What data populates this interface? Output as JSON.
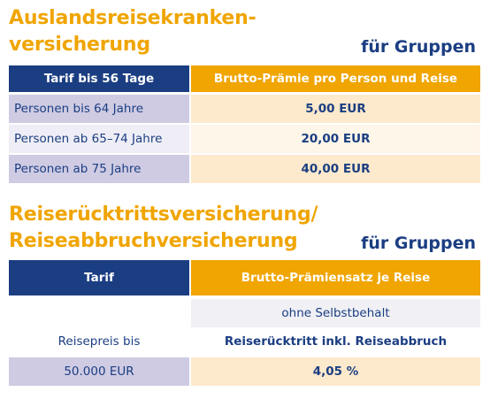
{
  "section1": {
    "title_line1": "Auslandsreisekranken-",
    "title_line2": "versicherung",
    "subtitle": "für Gruppen",
    "header_left": "Tarif bis 56 Tage",
    "header_right": "Brutto-Prämie pro Person und Reise",
    "rows": [
      {
        "label": "Personen bis 64 Jahre",
        "value": "5,00 EUR"
      },
      {
        "label": "Personen ab 65–74 Jahre",
        "value": "20,00 EUR"
      },
      {
        "label": "Personen ab 75 Jahre",
        "value": "40,00 EUR"
      }
    ]
  },
  "section2": {
    "title_line1": "Reiserücktrittsversicherung/",
    "title_line2": "Reiseabbruchversicherung",
    "subtitle": "für Gruppen",
    "header_left": "Tarif",
    "header_right": "Brutto-Prämiensatz je Reise",
    "sub_header": "ohne Selbstbehalt",
    "label_row_left": "Reisepreis bis",
    "label_row_right": "Reiserücktritt inkl. Reiseabbruch",
    "data_row_left": "50.000 EUR",
    "data_row_right": "4,05 %"
  },
  "colors": {
    "orange": "#f0a500",
    "navy": "#1b3e82",
    "lavender": "#cfcbe3",
    "peach": "#fde9cc"
  }
}
